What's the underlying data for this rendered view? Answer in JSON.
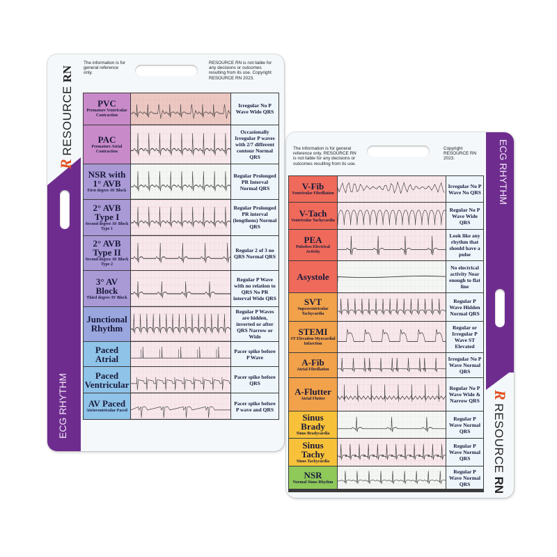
{
  "colors": {
    "brand_purple": "#6f2c8f",
    "logo_orange": "#e2501f",
    "label_magenta": "#c98ac9",
    "label_lavender": "#a99ad6",
    "label_blue": "#8fc3e8",
    "label_red": "#ef6a5a",
    "label_orange": "#f2a24a",
    "label_yellow": "#f7c23a",
    "label_green": "#8fc95a",
    "desc_bg": "#eef6fb"
  },
  "left_card": {
    "disclaimer_left": "The information is for general reference only.",
    "disclaimer_right": "RESOURCE RN is not liable for any decisions or outcomes resulting from its use. Copyright RESOURCE RN 2023.",
    "brand": {
      "logo_letter": "R",
      "word1": "RESOURCE",
      "word2": "RN"
    },
    "side_title": "ECG RHYTHM",
    "rows": [
      {
        "title": "PVC",
        "subtitle": "Premature Ventricular Contraction",
        "desc": "Irregular No P Wave Wide QRS",
        "color": "#c98ac9",
        "strip": "pvc"
      },
      {
        "title": "PAC",
        "subtitle": "Premature Atrial Contraction",
        "desc": "Occasionally Irregular P waves with 2/7 different contour Normal QRS",
        "color": "#c98ac9",
        "strip": "pac"
      },
      {
        "title": "NSR with 1° AVB",
        "subtitle": "First degree AV Block",
        "desc": "Regular Prolonged PR Interval Normal QRS",
        "color": "#a99ad6",
        "strip": "avb1"
      },
      {
        "title": "2° AVB Type I",
        "subtitle": "Second degree AV Block Type 1",
        "desc": "Regular Prolonged PR interval (lengthens) Normal QRS",
        "color": "#a99ad6",
        "strip": "avb2a"
      },
      {
        "title": "2° AVB Type II",
        "subtitle": "Second degree AV Block Type 2",
        "desc": "Regular 2 of 3 no QRS Normal QRS",
        "color": "#a99ad6",
        "strip": "avb2b"
      },
      {
        "title": "3° AV Block",
        "subtitle": "Third degree AV Block",
        "desc": "Regular P Wave with no relation to QRS No PR interval Wide QRS",
        "color": "#a99ad6",
        "strip": "avb3"
      },
      {
        "title": "Junctional Rhythm",
        "subtitle": "",
        "desc": "Regular P Waves are hidden, inverted or after QRS Narrow or Wide",
        "color": "#9aa6de",
        "strip": "junc"
      },
      {
        "title": "Paced Atrial",
        "subtitle": "",
        "desc": "Pacer spike before P Wave",
        "color": "#8fc3e8",
        "strip": "pacedA"
      },
      {
        "title": "Paced Ventricular",
        "subtitle": "",
        "desc": "Pacer spike before QRS",
        "color": "#8fc3e8",
        "strip": "pacedV"
      },
      {
        "title": "AV Paced",
        "subtitle": "Atrioventricular Paced",
        "desc": "Pacer spike before P wave and QRS",
        "color": "#8fc3e8",
        "strip": "pacedAV"
      }
    ]
  },
  "right_card": {
    "disclaimer_left": "The information is for general reference only. RESOURCE RN is not liable for any decisions or outcomes resulting from its use.",
    "disclaimer_right": "Copyright RESOURCE RN 2023.",
    "brand": {
      "logo_letter": "R",
      "word1": "RESOURCE",
      "word2": "RN"
    },
    "side_title": "ECG RHYTHM",
    "rows": [
      {
        "title": "V-Fib",
        "subtitle": "Ventricular Fibrillation",
        "desc": "Irregular No P Wave No QRS",
        "color": "#ef6a5a",
        "strip": "vfib"
      },
      {
        "title": "V-Tach",
        "subtitle": "Ventricular Tachycardia",
        "desc": "Regular No P Wave Wide QRS",
        "color": "#ef6a5a",
        "strip": "vtach"
      },
      {
        "title": "PEA",
        "subtitle": "Pulseless Electrical Activity",
        "desc": "Look like any rhythm that should have a pulse",
        "color": "#ef6a5a",
        "strip": "pea"
      },
      {
        "title": "Asystole",
        "subtitle": "",
        "desc": "No electrical activity Near enough to flat line",
        "color": "#ef6a5a",
        "strip": "asys"
      },
      {
        "title": "SVT",
        "subtitle": "Supraventricular Tachycardia",
        "desc": "Regular P Wave Hidden Normal QRS",
        "color": "#f2a24a",
        "strip": "svt"
      },
      {
        "title": "STEMI",
        "subtitle": "ST Elevation Myocardial Infarction",
        "desc": "Regular or Irregular P Wave ST Elevated",
        "color": "#f2a24a",
        "strip": "stemi"
      },
      {
        "title": "A-Fib",
        "subtitle": "Atrial Fibrillation",
        "desc": "Irregular No P Wave Normal QRS",
        "color": "#f2a24a",
        "strip": "afib"
      },
      {
        "title": "A-Flutter",
        "subtitle": "Atrial Flutter",
        "desc": "Regular No P Wave Wide & Narrow QRS",
        "color": "#f2a24a",
        "strip": "aflut"
      },
      {
        "title": "Sinus Brady",
        "subtitle": "Sinus Bradycardia",
        "desc": "Regular P Wave Normal QRS",
        "color": "#f7c23a",
        "strip": "brady"
      },
      {
        "title": "Sinus Tachy",
        "subtitle": "Sinus Tachycardia",
        "desc": "Regular P Wave Normal QRS",
        "color": "#f7c23a",
        "strip": "tachy"
      },
      {
        "title": "NSR",
        "subtitle": "Normal Sinus Rhythm",
        "desc": "Regular P Wave Normal QRS",
        "color": "#8fc95a",
        "strip": "nsr"
      }
    ]
  }
}
